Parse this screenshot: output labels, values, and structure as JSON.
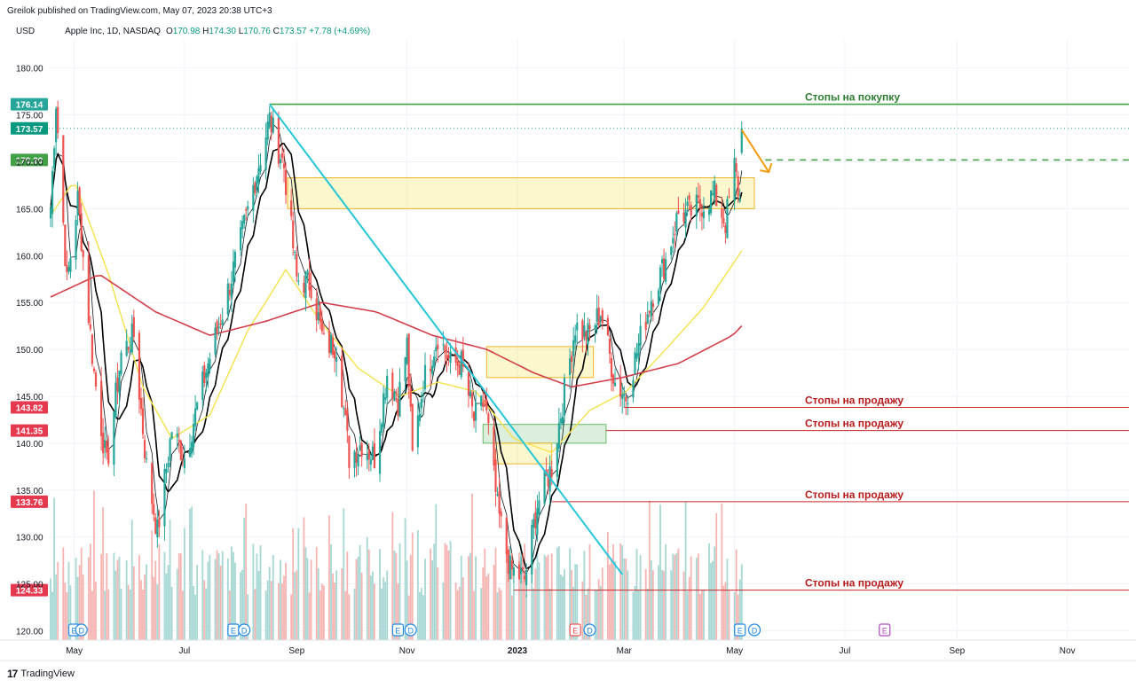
{
  "header": {
    "published": "Greilok published on TradingView.com, May 07, 2023 20:38 UTC+3"
  },
  "legend": {
    "currency": "USD",
    "symbol": "Apple Inc, 1D, NASDAQ",
    "o_label": "O",
    "o": "170.98",
    "h_label": "H",
    "h": "174.30",
    "l_label": "L",
    "l": "170.76",
    "c_label": "C",
    "c": "173.57",
    "change": "+7.78 (+4.69%)"
  },
  "footer": {
    "brand": "TradingView"
  },
  "colors": {
    "up": "#26a69a",
    "down": "#ef5350",
    "ma_fast": "#131722",
    "ma_mid": "#000000",
    "ma_yellow": "#f5e24a",
    "ma_red": "#d23e4a",
    "trend": "#26c6da",
    "buy_line": "#43a047",
    "sell_line": "#c62828",
    "arrow": "#f39c12"
  },
  "chart_data": {
    "type": "candlestick",
    "title": "Apple Inc, 1D, NASDAQ",
    "ylim": [
      119,
      183
    ],
    "y_ticks": [
      120,
      125,
      130,
      135,
      140,
      145,
      150,
      155,
      160,
      165,
      170,
      175,
      180
    ],
    "y_tick_labels": [
      "120.00",
      "125.00",
      "130.00",
      "135.00",
      "140.00",
      "145.00",
      "150.00",
      "155.00",
      "160.00",
      "165.00",
      "170.00",
      "175.00",
      "180.00"
    ],
    "x_labels": [
      "May",
      "Jul",
      "Sep",
      "Nov",
      "2023",
      "Mar",
      "May",
      "Jul",
      "Sep",
      "Nov"
    ],
    "x_label_dates": [
      "2022-05-01",
      "2022-07-01",
      "2022-09-01",
      "2022-11-01",
      "2023-01-01",
      "2023-03-01",
      "2023-05-01",
      "2023-07-01",
      "2023-09-01",
      "2023-11-01"
    ],
    "x_range": [
      "2022-04-17",
      "2023-12-05"
    ],
    "close_key_points": [
      [
        "2022-04-18",
        165.0
      ],
      [
        "2022-04-21",
        176.5
      ],
      [
        "2022-04-27",
        157.0
      ],
      [
        "2022-05-03",
        166.0
      ],
      [
        "2022-05-12",
        147.5
      ],
      [
        "2022-05-19",
        137.5
      ],
      [
        "2022-05-27",
        149.5
      ],
      [
        "2022-06-03",
        151.5
      ],
      [
        "2022-06-10",
        137.5
      ],
      [
        "2022-06-16",
        130.5
      ],
      [
        "2022-06-24",
        141.5
      ],
      [
        "2022-07-01",
        138.5
      ],
      [
        "2022-07-14",
        148.5
      ],
      [
        "2022-07-22",
        154.0
      ],
      [
        "2022-08-01",
        161.5
      ],
      [
        "2022-08-10",
        169.0
      ],
      [
        "2022-08-17",
        174.5
      ],
      [
        "2022-08-25",
        169.5
      ],
      [
        "2022-09-01",
        157.5
      ],
      [
        "2022-09-09",
        157.0
      ],
      [
        "2022-09-16",
        150.5
      ],
      [
        "2022-09-23",
        150.5
      ],
      [
        "2022-09-30",
        138.5
      ],
      [
        "2022-10-07",
        140.0
      ],
      [
        "2022-10-14",
        138.5
      ],
      [
        "2022-10-21",
        147.5
      ],
      [
        "2022-10-27",
        144.5
      ],
      [
        "2022-11-01",
        150.5
      ],
      [
        "2022-11-04",
        138.5
      ],
      [
        "2022-11-10",
        146.5
      ],
      [
        "2022-11-18",
        151.5
      ],
      [
        "2022-11-25",
        148.5
      ],
      [
        "2022-12-01",
        148.5
      ],
      [
        "2022-12-08",
        142.5
      ],
      [
        "2022-12-14",
        144.5
      ],
      [
        "2022-12-21",
        133.0
      ],
      [
        "2022-12-28",
        126.5
      ],
      [
        "2023-01-05",
        125.5
      ],
      [
        "2023-01-12",
        133.5
      ],
      [
        "2023-01-20",
        137.5
      ],
      [
        "2023-01-27",
        145.5
      ],
      [
        "2023-02-02",
        152.5
      ],
      [
        "2023-02-09",
        151.5
      ],
      [
        "2023-02-16",
        154.0
      ],
      [
        "2023-02-24",
        146.5
      ],
      [
        "2023-03-02",
        145.0
      ],
      [
        "2023-03-09",
        150.5
      ],
      [
        "2023-03-16",
        155.5
      ],
      [
        "2023-03-24",
        159.5
      ],
      [
        "2023-03-31",
        164.5
      ],
      [
        "2023-04-06",
        164.5
      ],
      [
        "2023-04-13",
        165.5
      ],
      [
        "2023-04-20",
        166.5
      ],
      [
        "2023-04-26",
        163.5
      ],
      [
        "2023-05-01",
        169.5
      ],
      [
        "2023-05-04",
        165.8
      ],
      [
        "2023-05-05",
        173.57
      ]
    ],
    "series": [
      {
        "type": "candles",
        "last": {
          "open": 170.98,
          "high": 174.3,
          "low": 170.76,
          "close": 173.57
        }
      },
      {
        "type": "line",
        "key_points": [
          [
            "2022-04-17",
            164.0
          ],
          [
            "2022-05-01",
            168.0
          ],
          [
            "2022-05-20",
            158.0
          ],
          [
            "2022-06-08",
            146.0
          ],
          [
            "2022-06-24",
            140.5
          ],
          [
            "2022-07-15",
            143.0
          ],
          [
            "2022-08-05",
            152.0
          ],
          [
            "2022-08-26",
            158.5
          ],
          [
            "2022-09-14",
            153.0
          ],
          [
            "2022-10-05",
            148.0
          ],
          [
            "2022-10-28",
            145.0
          ],
          [
            "2022-11-18",
            146.5
          ],
          [
            "2022-12-09",
            145.5
          ],
          [
            "2022-12-30",
            140.5
          ],
          [
            "2023-01-20",
            139.0
          ],
          [
            "2023-02-10",
            143.5
          ],
          [
            "2023-03-02",
            145.5
          ],
          [
            "2023-03-24",
            150.0
          ],
          [
            "2023-04-14",
            154.5
          ],
          [
            "2023-05-05",
            160.5
          ]
        ]
      },
      {
        "type": "line",
        "key_points": [
          [
            "2022-04-17",
            155.5
          ],
          [
            "2022-05-15",
            158.0
          ],
          [
            "2022-06-15",
            154.0
          ],
          [
            "2022-07-15",
            151.5
          ],
          [
            "2022-08-15",
            153.0
          ],
          [
            "2022-09-15",
            155.0
          ],
          [
            "2022-10-15",
            154.0
          ],
          [
            "2022-11-15",
            151.5
          ],
          [
            "2022-12-15",
            150.0
          ],
          [
            "2023-01-10",
            147.5
          ],
          [
            "2023-01-31",
            146.0
          ],
          [
            "2023-02-28",
            147.0
          ],
          [
            "2023-03-31",
            148.5
          ],
          [
            "2023-04-30",
            151.5
          ],
          [
            "2023-05-05",
            152.5
          ]
        ]
      }
    ],
    "levels": [
      {
        "value": 176.14,
        "label": "176.14",
        "kind": "buy",
        "text": "Стопы на покупку"
      },
      {
        "value": 173.57,
        "label": "173.57",
        "kind": "last"
      },
      {
        "value": 170.2,
        "label": "170.20",
        "kind": "target"
      },
      {
        "value": 143.82,
        "label": "143.82",
        "kind": "sell",
        "text": "Стопы на продажу"
      },
      {
        "value": 141.35,
        "label": "141.35",
        "kind": "sell",
        "text": "Стопы на продажу"
      },
      {
        "value": 133.76,
        "label": "133.76",
        "kind": "sell",
        "text": "Стопы на продажу"
      },
      {
        "value": 124.33,
        "label": "124.33",
        "kind": "sell",
        "text": "Стопы на продажу"
      }
    ],
    "trendline": {
      "from": [
        "2022-08-17",
        176.14
      ],
      "to": [
        "2023-02-28",
        126.0
      ]
    },
    "zones": [
      {
        "from": "2022-08-27",
        "to": "2023-05-12",
        "low": 165.0,
        "high": 168.3,
        "color": "#f5e24a"
      },
      {
        "from": "2022-12-15",
        "to": "2023-02-12",
        "low": 147.0,
        "high": 150.3,
        "color": "#f5e24a"
      },
      {
        "from": "2022-12-13",
        "to": "2023-02-19",
        "low": 140.0,
        "high": 142.0,
        "color": "#81c784"
      },
      {
        "from": "2022-12-19",
        "to": "2023-01-20",
        "low": 137.8,
        "high": 140.0,
        "color": "#f5e24a"
      }
    ],
    "events": [
      {
        "date": "2022-05-01",
        "label": "E"
      },
      {
        "date": "2022-05-05",
        "label": "D"
      },
      {
        "date": "2022-07-28",
        "label": "E"
      },
      {
        "date": "2022-08-03",
        "label": "D"
      },
      {
        "date": "2022-10-27",
        "label": "E"
      },
      {
        "date": "2022-11-03",
        "label": "D"
      },
      {
        "date": "2023-02-02",
        "label": "E"
      },
      {
        "date": "2023-02-10",
        "label": "D"
      },
      {
        "date": "2023-05-04",
        "label": "E"
      },
      {
        "date": "2023-05-12",
        "label": "D"
      },
      {
        "date": "2023-07-23",
        "label": "E"
      }
    ]
  }
}
